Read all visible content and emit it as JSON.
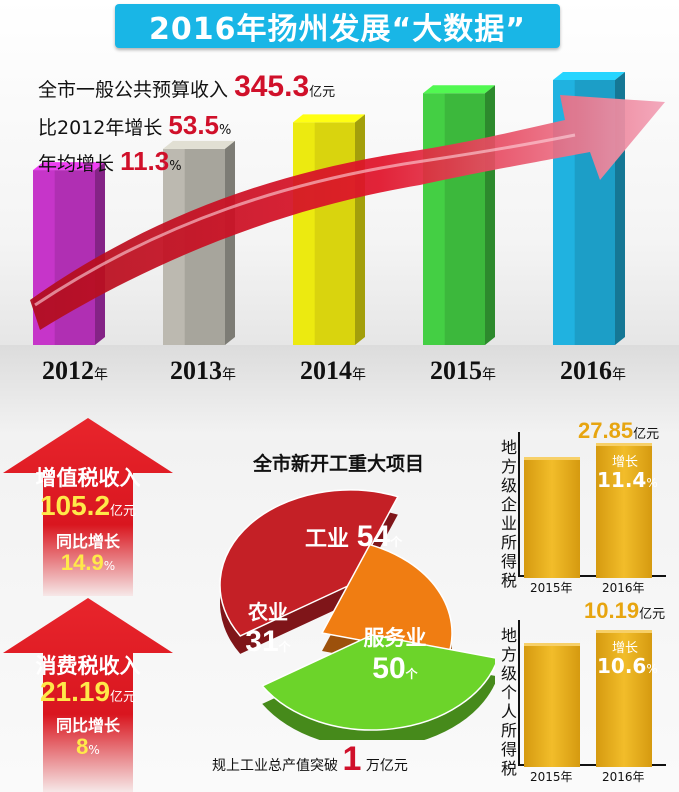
{
  "title": "2016年扬州发展“大数据”",
  "summary": {
    "line1_label": "全市一般公共预算收入",
    "line1_value": "345.3",
    "line1_unit": "亿元",
    "line2_label": "比2012年增长",
    "line2_value": "53.5",
    "line2_unit": "%",
    "line3_label": "年均增长",
    "line3_value": "11.3",
    "line3_unit": "%"
  },
  "year_unit": "年",
  "chart_data": [
    {
      "type": "bar",
      "categories": [
        "2012",
        "2013",
        "2014",
        "2015",
        "2016"
      ],
      "values": [
        0.66,
        0.74,
        0.84,
        0.95,
        1.0
      ],
      "value_note_scale": "relative bar heights (unlabeled)",
      "colors": [
        "#b02fb3",
        "#a7a59c",
        "#d9d40e",
        "#3cb83c",
        "#1c9ec7"
      ],
      "arrow_color": "#e0132a"
    },
    {
      "type": "pie",
      "title": "全市新开工重大项目",
      "slices": [
        {
          "label": "工业",
          "value": 54,
          "unit": "个",
          "color": "#c42026"
        },
        {
          "label": "农业",
          "value": 31,
          "unit": "个",
          "color": "#f07d12"
        },
        {
          "label": "服务业",
          "value": 50,
          "unit": "个",
          "color": "#6cd42a"
        }
      ]
    },
    {
      "type": "bar",
      "ylabel": "地方级企业所得税",
      "categories": [
        "2015年",
        "2016年"
      ],
      "values": [
        24.98,
        27.85
      ],
      "value_label": "27.85",
      "unit": "亿元",
      "growth_label": "增长",
      "growth": "11.4",
      "growth_unit": "%"
    },
    {
      "type": "bar",
      "ylabel": "地方级个人所得税",
      "categories": [
        "2015年",
        "2016年"
      ],
      "values": [
        9.21,
        10.19
      ],
      "value_label": "10.19",
      "unit": "亿元",
      "growth_label": "增长",
      "growth": "10.6",
      "growth_unit": "%"
    }
  ],
  "vat": {
    "title": "增值税收入",
    "value": "105.2",
    "unit": "亿元",
    "growth_label": "同比增长",
    "growth": "14.9",
    "growth_unit": "%"
  },
  "consumption_tax": {
    "title": "消费税收入",
    "value": "21.19",
    "unit": "亿元",
    "growth_label": "同比增长",
    "growth": "8",
    "growth_unit": "%"
  },
  "footer": {
    "prefix": "规上工业总产值突破",
    "value": "1",
    "suffix": "万亿元"
  }
}
